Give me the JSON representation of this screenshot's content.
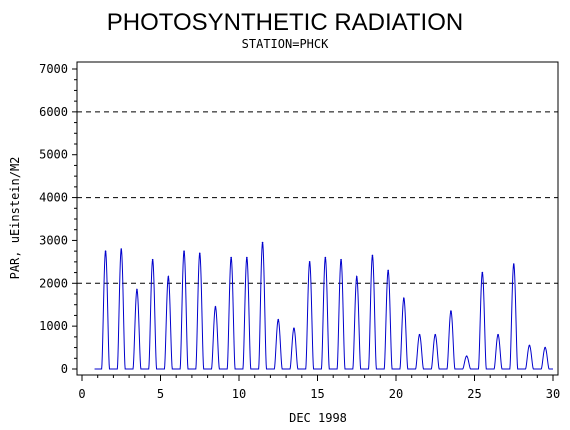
{
  "chart_data": {
    "type": "line",
    "title": "PHOTOSYNTHETIC RADIATION",
    "subtitle": "STATION=PHCK",
    "xlabel": "DEC 1998",
    "ylabel": "PAR, uEinstein/M2",
    "xlim": [
      0,
      30
    ],
    "ylim": [
      0,
      7000
    ],
    "x_ticks": [
      0,
      5,
      10,
      15,
      20,
      25,
      30
    ],
    "y_ticks": [
      0,
      1000,
      2000,
      3000,
      4000,
      5000,
      6000,
      7000
    ],
    "x_tick_labels": [
      "0",
      "5",
      "10",
      "15",
      "20",
      "25",
      "30"
    ],
    "y_tick_labels": [
      "0",
      "1000",
      "2000",
      "3000",
      "4000",
      "5000",
      "6000",
      "7000"
    ],
    "reference_lines": [
      2000,
      4000,
      6000
    ],
    "grid": false,
    "series": [
      {
        "color": "#0000cc",
        "daily_peaks": [
          {
            "day": 1,
            "peak": 2750
          },
          {
            "day": 2,
            "peak": 2800
          },
          {
            "day": 3,
            "peak": 1850
          },
          {
            "day": 4,
            "peak": 2550
          },
          {
            "day": 5,
            "peak": 2150
          },
          {
            "day": 6,
            "peak": 2750
          },
          {
            "day": 7,
            "peak": 2700
          },
          {
            "day": 8,
            "peak": 1450
          },
          {
            "day": 9,
            "peak": 2600
          },
          {
            "day": 10,
            "peak": 2600
          },
          {
            "day": 11,
            "peak": 2950
          },
          {
            "day": 12,
            "peak": 1150
          },
          {
            "day": 13,
            "peak": 950
          },
          {
            "day": 14,
            "peak": 2500
          },
          {
            "day": 15,
            "peak": 2600
          },
          {
            "day": 16,
            "peak": 2550
          },
          {
            "day": 17,
            "peak": 2150
          },
          {
            "day": 18,
            "peak": 2650
          },
          {
            "day": 19,
            "peak": 2300
          },
          {
            "day": 20,
            "peak": 1650
          },
          {
            "day": 21,
            "peak": 800
          },
          {
            "day": 22,
            "peak": 800
          },
          {
            "day": 23,
            "peak": 1350
          },
          {
            "day": 24,
            "peak": 300
          },
          {
            "day": 25,
            "peak": 2250
          },
          {
            "day": 26,
            "peak": 800
          },
          {
            "day": 27,
            "peak": 2450
          },
          {
            "day": 28,
            "peak": 550
          },
          {
            "day": 29,
            "peak": 500
          }
        ]
      }
    ]
  }
}
